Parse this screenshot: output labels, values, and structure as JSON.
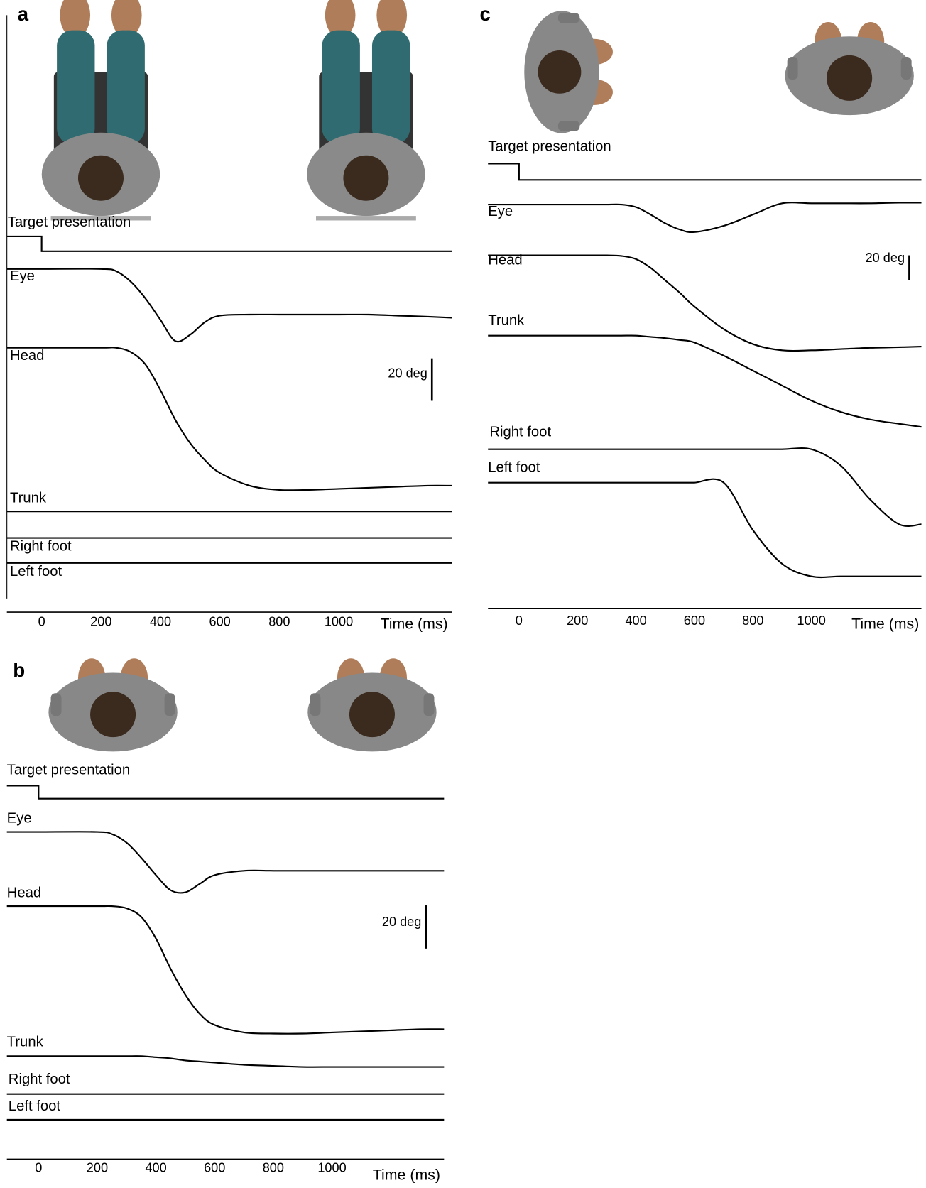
{
  "chart_data": [
    {
      "type": "line",
      "panel": "a",
      "xlabel": "Time (ms)",
      "color": "#000000",
      "xlim": [
        -117,
        1380
      ],
      "xticks": [
        0,
        200,
        400,
        600,
        800,
        1000
      ],
      "scale_bar": {
        "value": 20,
        "label": "20 deg"
      },
      "series": [
        {
          "name": "Target presentation",
          "x": [
            -117,
            0,
            0,
            1380
          ],
          "values": [
            0,
            0,
            -7,
            -7
          ]
        },
        {
          "name": "Eye",
          "x": [
            -117,
            0,
            200,
            250,
            300,
            350,
            400,
            450,
            500,
            550,
            600,
            700,
            800,
            900,
            1000,
            1100,
            1200,
            1300,
            1380
          ],
          "values": [
            0,
            0,
            0,
            -1,
            -6,
            -14,
            -24,
            -34,
            -31,
            -25,
            -22,
            -21.5,
            -21.5,
            -21.5,
            -21.5,
            -21.5,
            -22,
            -22.5,
            -23
          ]
        },
        {
          "name": "Head",
          "x": [
            -117,
            0,
            200,
            250,
            300,
            350,
            400,
            450,
            500,
            550,
            600,
            700,
            800,
            900,
            1000,
            1100,
            1200,
            1300,
            1380
          ],
          "values": [
            0,
            0,
            0,
            0,
            -2,
            -8,
            -20,
            -34,
            -45,
            -53,
            -59,
            -65,
            -67,
            -67,
            -66.5,
            -66,
            -65.5,
            -65,
            -65
          ]
        },
        {
          "name": "Trunk",
          "x": [
            -117,
            1380
          ],
          "values": [
            0,
            0
          ]
        },
        {
          "name": "Right foot",
          "x": [
            -117,
            1380
          ],
          "values": [
            0,
            0
          ]
        },
        {
          "name": "Left foot",
          "x": [
            -117,
            1380
          ],
          "values": [
            0,
            0
          ]
        }
      ]
    },
    {
      "type": "line",
      "panel": "b",
      "xlabel": "Time (ms)",
      "color": "#000000",
      "xlim": [
        -108,
        1382
      ],
      "xticks": [
        0,
        200,
        400,
        600,
        800,
        1000
      ],
      "scale_bar": {
        "value": 20,
        "label": "20 deg"
      },
      "series": [
        {
          "name": "Target presentation",
          "x": [
            -108,
            0,
            0,
            1382
          ],
          "values": [
            0,
            0,
            -6,
            -6
          ]
        },
        {
          "name": "Eye",
          "x": [
            -108,
            0,
            200,
            250,
            300,
            350,
            400,
            450,
            500,
            550,
            600,
            700,
            800,
            900,
            1000,
            1100,
            1200,
            1300,
            1382
          ],
          "values": [
            0,
            0,
            0,
            -1,
            -5,
            -12,
            -20,
            -27,
            -28,
            -24,
            -20,
            -18,
            -18,
            -18,
            -18,
            -18,
            -18,
            -18,
            -18
          ]
        },
        {
          "name": "Head",
          "x": [
            -108,
            0,
            200,
            250,
            300,
            350,
            400,
            450,
            500,
            550,
            600,
            700,
            800,
            900,
            1000,
            1100,
            1200,
            1300,
            1382
          ],
          "values": [
            0,
            0,
            0,
            0,
            -1,
            -5,
            -15,
            -29,
            -41,
            -50,
            -55,
            -58.5,
            -59,
            -59,
            -58.5,
            -58,
            -57.5,
            -57,
            -57
          ]
        },
        {
          "name": "Trunk",
          "x": [
            -108,
            0,
            200,
            250,
            300,
            350,
            400,
            450,
            500,
            550,
            600,
            700,
            800,
            900,
            1000,
            1100,
            1200,
            1300,
            1382
          ],
          "values": [
            0,
            0,
            0,
            0,
            0,
            0,
            -0.5,
            -1,
            -2,
            -2.5,
            -3,
            -4,
            -4.5,
            -5,
            -5,
            -5,
            -5,
            -5,
            -5
          ]
        },
        {
          "name": "Right foot",
          "x": [
            -108,
            1382
          ],
          "values": [
            0,
            0
          ]
        },
        {
          "name": "Left foot",
          "x": [
            -108,
            1382
          ],
          "values": [
            0,
            0
          ]
        }
      ]
    },
    {
      "type": "line",
      "panel": "c",
      "xlabel": "Time (ms)",
      "color": "#000000",
      "xlim": [
        -106,
        1376
      ],
      "xticks": [
        0,
        200,
        400,
        600,
        800,
        1000
      ],
      "scale_bar": {
        "value": 20,
        "label": "20 deg"
      },
      "series": [
        {
          "name": "Target presentation",
          "x": [
            -106,
            0,
            0,
            1376
          ],
          "values": [
            0,
            0,
            -13,
            -13
          ]
        },
        {
          "name": "Eye",
          "x": [
            -106,
            0,
            200,
            250,
            300,
            350,
            400,
            450,
            500,
            550,
            600,
            700,
            800,
            900,
            1000,
            1100,
            1200,
            1300,
            1376
          ],
          "values": [
            0,
            0,
            0,
            0,
            0,
            0,
            -2,
            -8,
            -15,
            -20,
            -22,
            -17,
            -8,
            1,
            1,
            1,
            1,
            1.5,
            1.5
          ]
        },
        {
          "name": "Head",
          "x": [
            -106,
            0,
            200,
            250,
            300,
            350,
            400,
            450,
            500,
            550,
            600,
            700,
            800,
            900,
            1000,
            1100,
            1200,
            1300,
            1376
          ],
          "values": [
            0,
            0,
            0,
            0,
            0,
            -0.5,
            -3,
            -10,
            -20,
            -30,
            -41,
            -59,
            -71,
            -76,
            -76,
            -75,
            -74,
            -73.5,
            -73
          ]
        },
        {
          "name": "Trunk",
          "x": [
            -106,
            0,
            200,
            250,
            300,
            350,
            400,
            450,
            500,
            550,
            600,
            700,
            800,
            900,
            1000,
            1100,
            1200,
            1300,
            1376
          ],
          "values": [
            0,
            0,
            0,
            0,
            0,
            0,
            0,
            -1,
            -2,
            -3.5,
            -5.5,
            -16,
            -28,
            -40,
            -52,
            -61,
            -67,
            -70.5,
            -73
          ]
        },
        {
          "name": "Right foot",
          "x": [
            -106,
            0,
            200,
            250,
            300,
            350,
            400,
            450,
            500,
            550,
            600,
            700,
            800,
            900,
            1000,
            1100,
            1200,
            1300,
            1376
          ],
          "values": [
            0,
            0,
            0,
            0,
            0,
            0,
            0,
            0,
            0,
            0,
            0,
            0,
            0,
            0,
            0,
            -13,
            -40,
            -60,
            -60
          ]
        },
        {
          "name": "Left foot",
          "x": [
            -106,
            0,
            200,
            250,
            300,
            350,
            400,
            450,
            500,
            550,
            600,
            700,
            800,
            900,
            1000,
            1100,
            1200,
            1300,
            1376
          ],
          "values": [
            0,
            0,
            0,
            0,
            0,
            0,
            0,
            0,
            0,
            0,
            0,
            0,
            -38,
            -65,
            -75,
            -75,
            -75,
            -75,
            -75
          ]
        }
      ]
    }
  ]
}
